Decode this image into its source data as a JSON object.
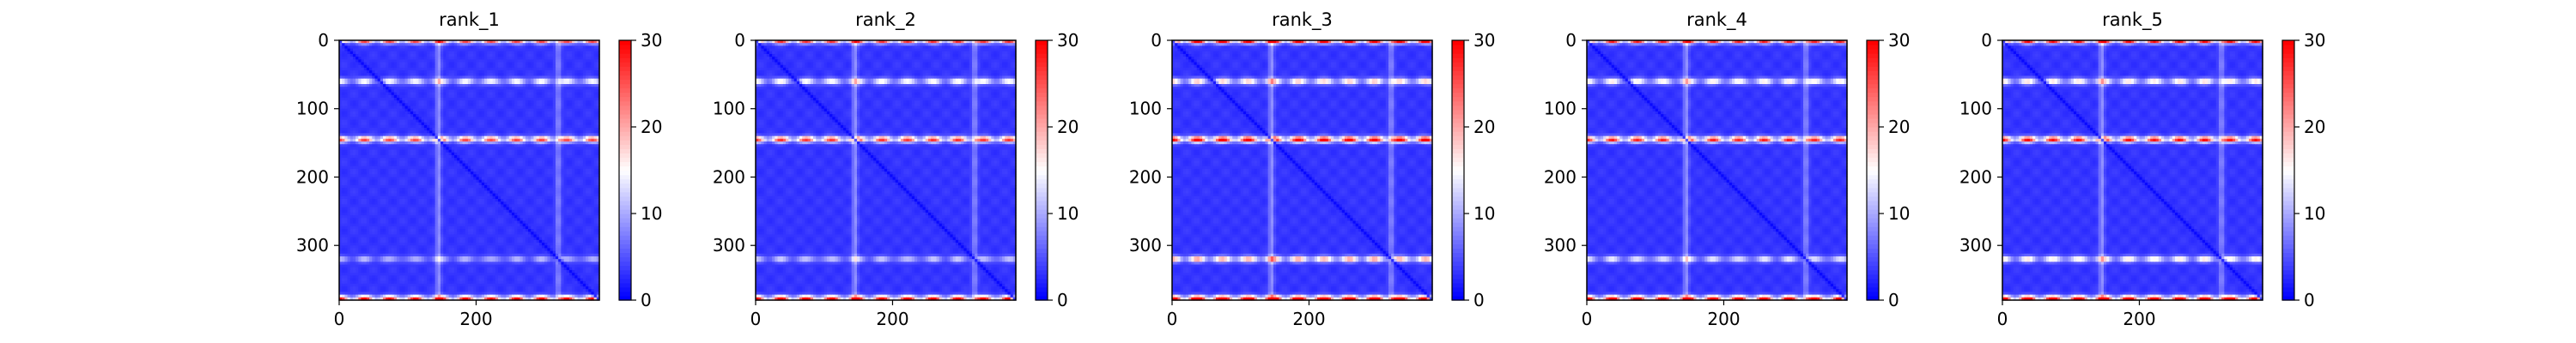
{
  "chart_data": {
    "type": "heatmap",
    "colormap": {
      "name": "bwr",
      "low": "#0000ff",
      "mid": "#ffffff",
      "high": "#ff0000"
    },
    "xlim": [
      0,
      380
    ],
    "ylim": [
      380,
      0
    ],
    "x_ticks": [
      "0",
      "200"
    ],
    "y_ticks": [
      "0",
      "100",
      "200",
      "300"
    ],
    "colorbar": {
      "range": [
        0,
        30
      ],
      "ticks": [
        "0",
        "10",
        "20",
        "30"
      ]
    },
    "panels": [
      {
        "title": "rank_1",
        "value_scale": 1.0,
        "band_320_strength": 0.55
      },
      {
        "title": "rank_2",
        "value_scale": 1.05,
        "band_320_strength": 0.6
      },
      {
        "title": "rank_3",
        "value_scale": 1.25,
        "band_320_strength": 1.0
      },
      {
        "title": "rank_4",
        "value_scale": 1.1,
        "band_320_strength": 0.7
      },
      {
        "title": "rank_5",
        "value_scale": 1.15,
        "band_320_strength": 0.85
      }
    ],
    "features": {
      "background_value": 2.5,
      "diagonal_value": 0,
      "horizontal_bands": [
        {
          "row": 0,
          "value": 28
        },
        {
          "row": 60,
          "value": 14
        },
        {
          "row": 145,
          "value": 24
        },
        {
          "row": 320,
          "value": 16
        },
        {
          "row": 378,
          "value": 27
        }
      ],
      "vertical_bands": [
        {
          "col": 145,
          "value": 9
        },
        {
          "col": 320,
          "value": 8
        }
      ]
    }
  }
}
